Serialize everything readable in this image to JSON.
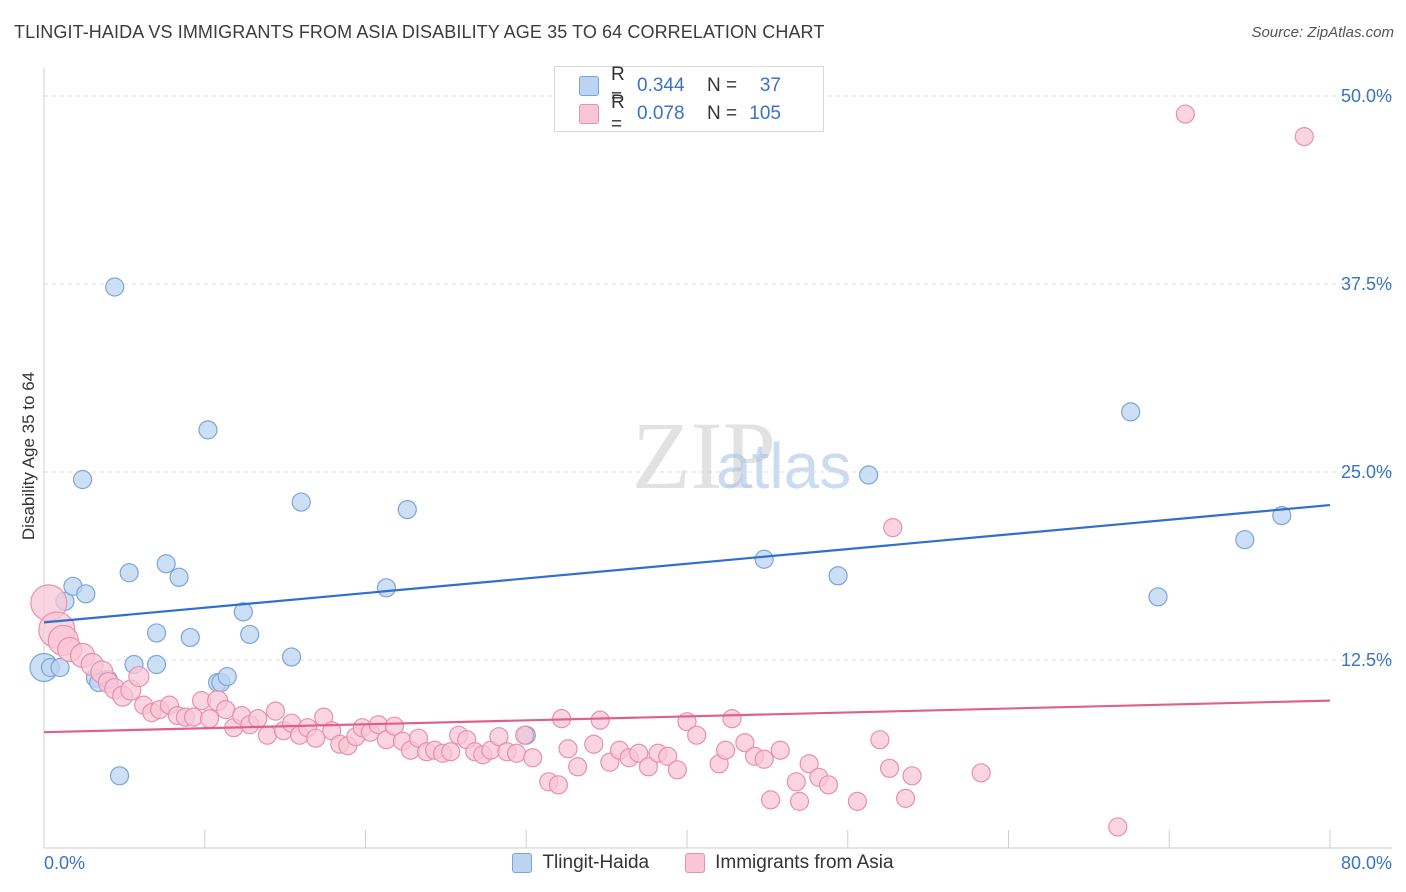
{
  "header": {
    "title": "TLINGIT-HAIDA VS IMMIGRANTS FROM ASIA DISABILITY AGE 35 TO 64 CORRELATION CHART",
    "source": "Source: ZipAtlas.com"
  },
  "legend": {
    "series1": {
      "r_label": "R =",
      "r_value": "0.344",
      "n_label": "N =",
      "n_value": "37"
    },
    "series2": {
      "r_label": "R =",
      "r_value": "0.078",
      "n_label": "N =",
      "n_value": "105"
    }
  },
  "bottom_legend": {
    "series1": "Tlingit-Haida",
    "series2": "Immigrants from Asia"
  },
  "colors": {
    "blue_fill": "#bcd4f2",
    "blue_stroke": "#7aa6d8",
    "blue_line": "#2f6fce",
    "pink_fill": "#f8c6d6",
    "pink_stroke": "#e890ad",
    "pink_line": "#e0608c",
    "tick_label": "#3a73c4"
  },
  "watermark": {
    "zip": "ZIP",
    "atlas": "atlas"
  },
  "chart_data": {
    "type": "scatter",
    "title": "TLINGIT-HAIDA VS IMMIGRANTS FROM ASIA DISABILITY AGE 35 TO 64 CORRELATION CHART",
    "xlabel": "",
    "ylabel": "Disability Age 35 to 64",
    "xlim": [
      0,
      80
    ],
    "ylim": [
      0,
      50
    ],
    "x_tick_labels": [
      "0.0%",
      "80.0%"
    ],
    "y_ticks": [
      12.5,
      25.0,
      37.5,
      50.0
    ],
    "y_tick_labels": [
      "12.5%",
      "25.0%",
      "37.5%",
      "50.0%"
    ],
    "grid": true,
    "legend_position": "top-center",
    "series": [
      {
        "name": "Tlingit-Haida",
        "color": "#bcd4f2",
        "trend": [
          [
            0,
            15.0
          ],
          [
            80,
            22.8
          ]
        ],
        "points": [
          [
            0.0,
            12.0,
            14
          ],
          [
            0.4,
            12.0,
            9
          ],
          [
            1.0,
            12.0,
            9
          ],
          [
            1.3,
            16.4,
            9
          ],
          [
            1.8,
            17.4,
            9
          ],
          [
            2.6,
            16.9,
            9
          ],
          [
            2.4,
            24.5,
            9
          ],
          [
            3.2,
            11.3,
            9
          ],
          [
            3.4,
            11.0,
            9
          ],
          [
            4.0,
            11.2,
            9
          ],
          [
            4.4,
            37.3,
            9
          ],
          [
            4.7,
            4.8,
            9
          ],
          [
            5.3,
            18.3,
            9
          ],
          [
            5.6,
            12.2,
            9
          ],
          [
            7.0,
            12.2,
            9
          ],
          [
            7.0,
            14.3,
            9
          ],
          [
            7.6,
            18.9,
            9
          ],
          [
            8.4,
            18.0,
            9
          ],
          [
            9.1,
            14.0,
            9
          ],
          [
            10.2,
            27.8,
            9
          ],
          [
            10.8,
            11.0,
            9
          ],
          [
            11.0,
            11.0,
            9
          ],
          [
            11.4,
            11.4,
            9
          ],
          [
            12.4,
            15.7,
            9
          ],
          [
            12.8,
            14.2,
            9
          ],
          [
            15.4,
            12.7,
            9
          ],
          [
            16.0,
            23.0,
            9
          ],
          [
            21.3,
            17.3,
            9
          ],
          [
            22.6,
            22.5,
            9
          ],
          [
            30.0,
            7.5,
            9
          ],
          [
            44.8,
            19.2,
            9
          ],
          [
            49.4,
            18.1,
            9
          ],
          [
            51.3,
            24.8,
            9
          ],
          [
            67.6,
            29.0,
            9
          ],
          [
            69.3,
            16.7,
            9
          ],
          [
            74.7,
            20.5,
            9
          ],
          [
            77.0,
            22.1,
            9
          ]
        ]
      },
      {
        "name": "Immigrants from Asia",
        "color": "#f8c6d6",
        "trend": [
          [
            0,
            7.7
          ],
          [
            80,
            9.8
          ]
        ],
        "points": [
          [
            0.3,
            16.3,
            18
          ],
          [
            0.8,
            14.5,
            18
          ],
          [
            1.2,
            13.8,
            15
          ],
          [
            1.6,
            13.2,
            12
          ],
          [
            2.4,
            12.8,
            12
          ],
          [
            3.0,
            12.2,
            11
          ],
          [
            3.6,
            11.7,
            11
          ],
          [
            4.0,
            11.0,
            10
          ],
          [
            4.4,
            10.6,
            10
          ],
          [
            4.9,
            10.1,
            10
          ],
          [
            5.4,
            10.5,
            10
          ],
          [
            5.9,
            11.4,
            10
          ],
          [
            6.2,
            9.5,
            9
          ],
          [
            6.7,
            9.0,
            9
          ],
          [
            7.2,
            9.2,
            9
          ],
          [
            7.8,
            9.5,
            9
          ],
          [
            8.3,
            8.8,
            9
          ],
          [
            8.8,
            8.7,
            9
          ],
          [
            9.3,
            8.7,
            9
          ],
          [
            9.8,
            9.8,
            9
          ],
          [
            10.3,
            8.6,
            9
          ],
          [
            10.8,
            9.8,
            10
          ],
          [
            11.3,
            9.2,
            9
          ],
          [
            11.8,
            8.0,
            9
          ],
          [
            12.3,
            8.8,
            9
          ],
          [
            12.8,
            8.2,
            9
          ],
          [
            13.3,
            8.6,
            9
          ],
          [
            13.9,
            7.5,
            9
          ],
          [
            14.4,
            9.1,
            9
          ],
          [
            14.9,
            7.8,
            9
          ],
          [
            15.4,
            8.3,
            9
          ],
          [
            15.9,
            7.5,
            9
          ],
          [
            16.4,
            8.0,
            9
          ],
          [
            16.9,
            7.3,
            9
          ],
          [
            17.4,
            8.7,
            9
          ],
          [
            17.9,
            7.8,
            9
          ],
          [
            18.4,
            6.9,
            9
          ],
          [
            18.9,
            6.8,
            9
          ],
          [
            19.4,
            7.4,
            9
          ],
          [
            19.8,
            8.0,
            9
          ],
          [
            20.3,
            7.7,
            9
          ],
          [
            20.8,
            8.2,
            9
          ],
          [
            21.3,
            7.2,
            9
          ],
          [
            21.8,
            8.1,
            9
          ],
          [
            22.3,
            7.1,
            9
          ],
          [
            22.8,
            6.5,
            9
          ],
          [
            23.3,
            7.3,
            9
          ],
          [
            23.8,
            6.4,
            9
          ],
          [
            24.3,
            6.5,
            9
          ],
          [
            24.8,
            6.3,
            9
          ],
          [
            25.3,
            6.4,
            9
          ],
          [
            25.8,
            7.5,
            9
          ],
          [
            26.3,
            7.2,
            9
          ],
          [
            26.8,
            6.4,
            9
          ],
          [
            27.3,
            6.2,
            9
          ],
          [
            27.8,
            6.5,
            9
          ],
          [
            28.3,
            7.4,
            9
          ],
          [
            28.8,
            6.4,
            9
          ],
          [
            29.4,
            6.3,
            9
          ],
          [
            29.9,
            7.5,
            9
          ],
          [
            30.4,
            6.0,
            9
          ],
          [
            31.4,
            4.4,
            9
          ],
          [
            32.0,
            4.2,
            9
          ],
          [
            32.6,
            6.6,
            9
          ],
          [
            33.2,
            5.4,
            9
          ],
          [
            34.2,
            6.9,
            9
          ],
          [
            34.6,
            8.5,
            9
          ],
          [
            35.2,
            5.7,
            9
          ],
          [
            35.8,
            6.5,
            9
          ],
          [
            36.4,
            6.0,
            9
          ],
          [
            37.0,
            6.3,
            9
          ],
          [
            37.6,
            5.4,
            9
          ],
          [
            38.2,
            6.3,
            9
          ],
          [
            38.8,
            6.1,
            9
          ],
          [
            39.4,
            5.2,
            9
          ],
          [
            40.0,
            8.4,
            9
          ],
          [
            40.6,
            7.5,
            9
          ],
          [
            42.0,
            5.6,
            9
          ],
          [
            42.4,
            6.5,
            9
          ],
          [
            43.6,
            7.0,
            9
          ],
          [
            44.2,
            6.1,
            9
          ],
          [
            44.8,
            5.9,
            9
          ],
          [
            45.2,
            3.2,
            9
          ],
          [
            45.8,
            6.5,
            9
          ],
          [
            46.8,
            4.4,
            9
          ],
          [
            47.0,
            3.1,
            9
          ],
          [
            47.6,
            5.6,
            9
          ],
          [
            48.2,
            4.7,
            9
          ],
          [
            48.8,
            4.2,
            9
          ],
          [
            50.6,
            3.1,
            9
          ],
          [
            52.0,
            7.2,
            9
          ],
          [
            52.6,
            5.3,
            9
          ],
          [
            53.6,
            3.3,
            9
          ],
          [
            54.0,
            4.8,
            9
          ],
          [
            58.3,
            5.0,
            9
          ],
          [
            66.8,
            1.4,
            9
          ],
          [
            71.0,
            48.8,
            9
          ],
          [
            78.4,
            47.3,
            9
          ],
          [
            52.8,
            21.3,
            9
          ],
          [
            32.2,
            8.6,
            9
          ],
          [
            42.8,
            8.6,
            9
          ]
        ]
      }
    ]
  }
}
